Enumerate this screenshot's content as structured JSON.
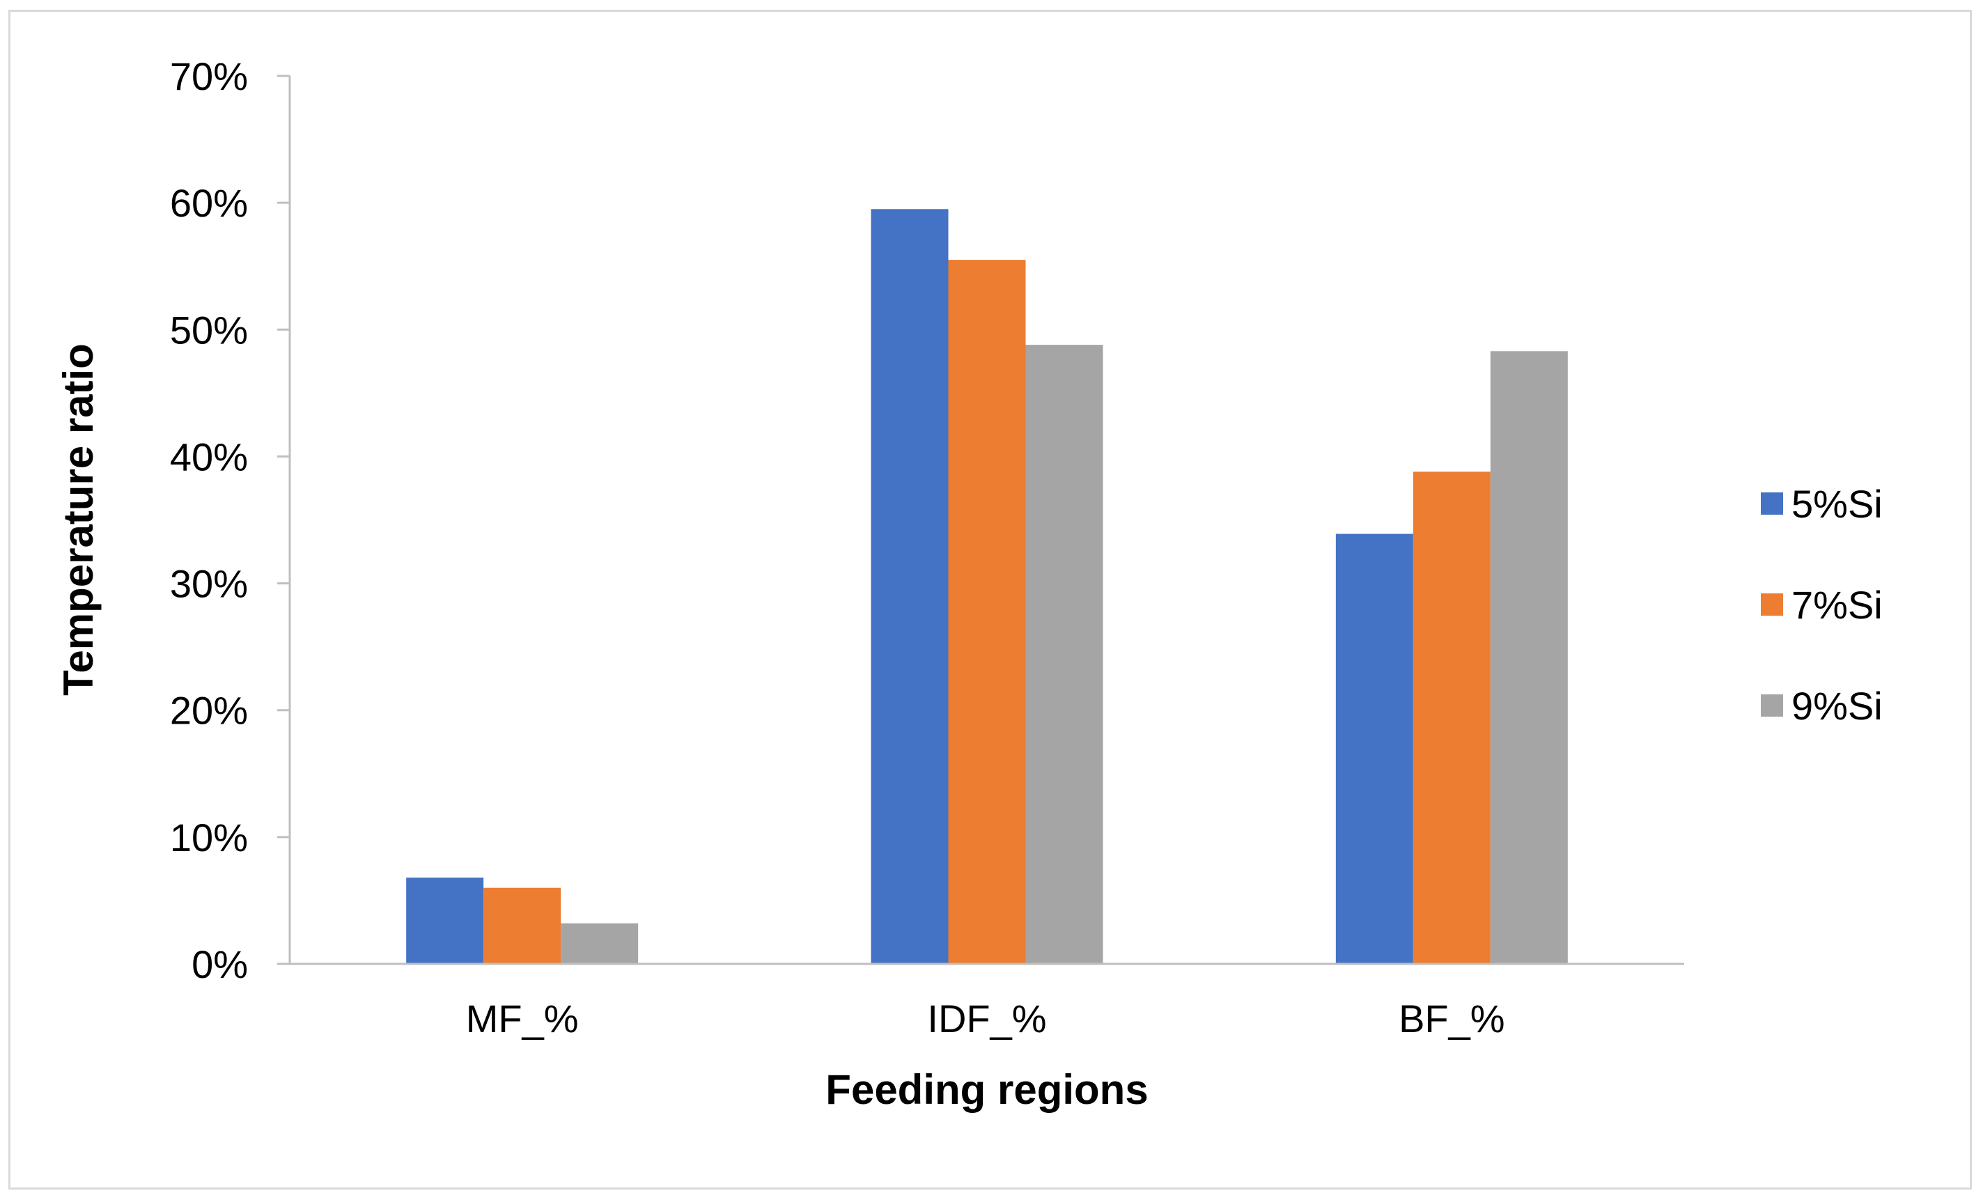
{
  "chart_data": {
    "type": "bar",
    "title": "",
    "xlabel": "Feeding regions",
    "ylabel": "Temperature ratio",
    "categories": [
      "MF_%",
      "IDF_%",
      "BF_%"
    ],
    "series": [
      {
        "name": "5%Si",
        "color": "#4472c4",
        "values": [
          6.8,
          59.5,
          33.9
        ]
      },
      {
        "name": "7%Si",
        "color": "#ed7d31",
        "values": [
          6.0,
          55.5,
          38.8
        ]
      },
      {
        "name": "9%Si",
        "color": "#a5a5a5",
        "values": [
          3.2,
          48.8,
          48.3
        ]
      }
    ],
    "ylim": [
      0,
      70
    ],
    "yticks": [
      "0%",
      "10%",
      "20%",
      "30%",
      "40%",
      "50%",
      "60%",
      "70%"
    ],
    "grid": false,
    "legend": "right"
  }
}
